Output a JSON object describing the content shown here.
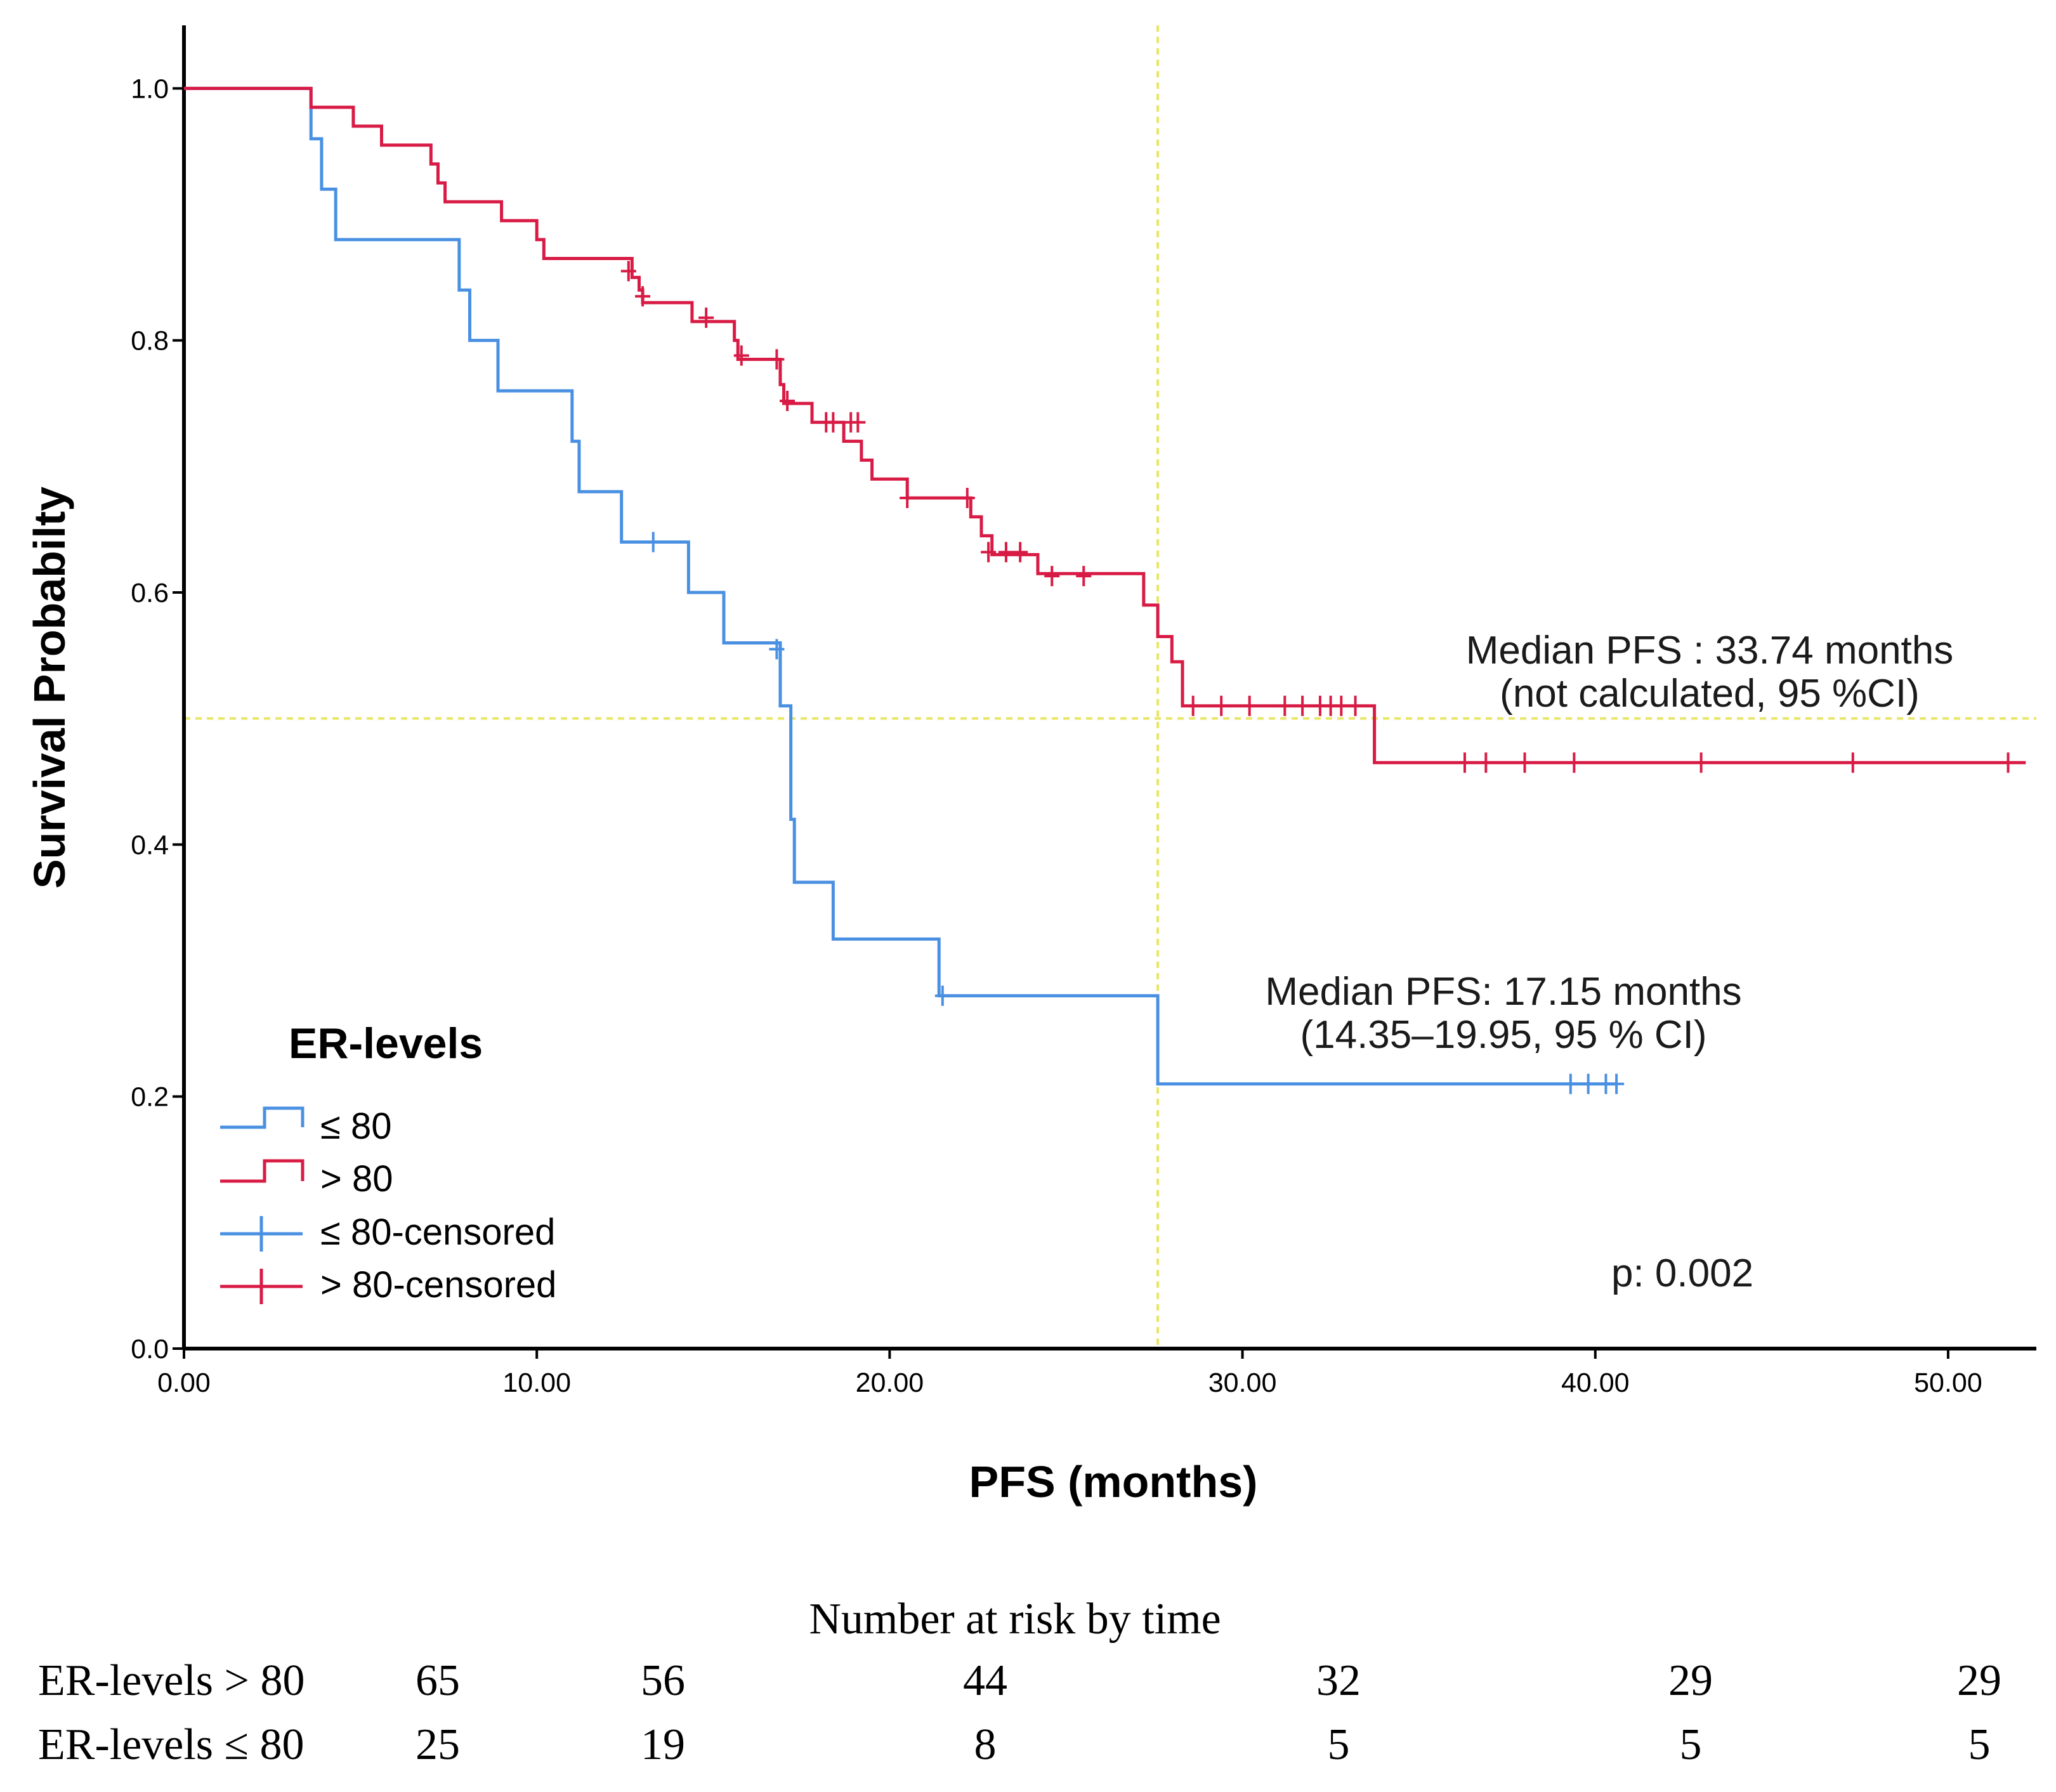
{
  "chart_data": {
    "type": "line",
    "subtype": "kaplan-meier",
    "title": "",
    "xlabel": "PFS (months)",
    "ylabel": "Survival Probabilty",
    "xlim": [
      0,
      52.5
    ],
    "ylim": [
      0,
      1.05
    ],
    "x_ticks": [
      0,
      10,
      20,
      30,
      40,
      50
    ],
    "x_tick_labels": [
      "0.00",
      "10.00",
      "20.00",
      "30.00",
      "40.00",
      "50.00"
    ],
    "y_ticks": [
      0,
      0.2,
      0.4,
      0.6,
      0.8,
      1.0
    ],
    "y_tick_labels": [
      "0.0",
      "0.2",
      "0.4",
      "0.6",
      "0.8",
      "1.0"
    ],
    "legend": {
      "title": "ER-levels",
      "position": "bottom-left",
      "entries": [
        "≤ 80",
        "> 80",
        "≤ 80-censored",
        "> 80-censored"
      ]
    },
    "series": [
      {
        "name": "≤ 80",
        "color": "#4a90e2",
        "steps": [
          [
            0,
            1.0
          ],
          [
            3.6,
            0.96
          ],
          [
            3.9,
            0.92
          ],
          [
            4.3,
            0.88
          ],
          [
            7.8,
            0.84
          ],
          [
            8.1,
            0.8
          ],
          [
            8.9,
            0.76
          ],
          [
            11.0,
            0.72
          ],
          [
            11.2,
            0.68
          ],
          [
            12.4,
            0.64
          ],
          [
            14.3,
            0.6
          ],
          [
            15.3,
            0.56
          ],
          [
            16.9,
            0.51
          ],
          [
            17.2,
            0.42
          ],
          [
            17.3,
            0.37
          ],
          [
            18.4,
            0.325
          ],
          [
            21.4,
            0.28
          ],
          [
            27.6,
            0.21
          ]
        ],
        "end_x": 40.6,
        "censored": [
          [
            13.3,
            0.64
          ],
          [
            16.8,
            0.555
          ],
          [
            21.5,
            0.28
          ],
          [
            39.3,
            0.21
          ],
          [
            39.8,
            0.21
          ],
          [
            40.3,
            0.21
          ],
          [
            40.6,
            0.21
          ]
        ]
      },
      {
        "name": "> 80",
        "color": "#d81b45",
        "steps": [
          [
            0,
            1.0
          ],
          [
            3.6,
            0.985
          ],
          [
            4.8,
            0.97
          ],
          [
            5.6,
            0.955
          ],
          [
            7.0,
            0.94
          ],
          [
            7.2,
            0.925
          ],
          [
            7.4,
            0.91
          ],
          [
            9.0,
            0.895
          ],
          [
            10.0,
            0.88
          ],
          [
            10.2,
            0.865
          ],
          [
            12.7,
            0.85
          ],
          [
            12.9,
            0.84
          ],
          [
            13.0,
            0.83
          ],
          [
            14.4,
            0.815
          ],
          [
            15.6,
            0.8
          ],
          [
            15.7,
            0.785
          ],
          [
            16.9,
            0.765
          ],
          [
            17.0,
            0.75
          ],
          [
            17.8,
            0.735
          ],
          [
            18.7,
            0.72
          ],
          [
            19.2,
            0.705
          ],
          [
            19.5,
            0.69
          ],
          [
            20.5,
            0.675
          ],
          [
            22.3,
            0.66
          ],
          [
            22.6,
            0.645
          ],
          [
            22.9,
            0.63
          ],
          [
            24.2,
            0.615
          ],
          [
            27.2,
            0.59
          ],
          [
            27.6,
            0.565
          ],
          [
            28.0,
            0.545
          ],
          [
            28.3,
            0.51
          ],
          [
            33.74,
            0.465
          ]
        ],
        "end_x": 52.2,
        "censored": [
          [
            12.6,
            0.855
          ],
          [
            13.0,
            0.835
          ],
          [
            14.8,
            0.818
          ],
          [
            15.8,
            0.788
          ],
          [
            16.8,
            0.785
          ],
          [
            17.1,
            0.752
          ],
          [
            18.2,
            0.735
          ],
          [
            18.4,
            0.735
          ],
          [
            18.9,
            0.735
          ],
          [
            19.1,
            0.735
          ],
          [
            20.5,
            0.675
          ],
          [
            22.2,
            0.675
          ],
          [
            22.8,
            0.632
          ],
          [
            23.3,
            0.632
          ],
          [
            23.7,
            0.632
          ],
          [
            24.6,
            0.613
          ],
          [
            25.5,
            0.613
          ],
          [
            28.6,
            0.51
          ],
          [
            29.4,
            0.51
          ],
          [
            30.2,
            0.51
          ],
          [
            31.2,
            0.51
          ],
          [
            31.7,
            0.51
          ],
          [
            32.2,
            0.51
          ],
          [
            32.5,
            0.51
          ],
          [
            32.8,
            0.51
          ],
          [
            33.2,
            0.51
          ],
          [
            36.3,
            0.465
          ],
          [
            36.9,
            0.465
          ],
          [
            38.0,
            0.465
          ],
          [
            39.4,
            0.465
          ],
          [
            43.0,
            0.465
          ],
          [
            47.3,
            0.465
          ],
          [
            51.7,
            0.465
          ]
        ]
      }
    ],
    "reference_lines": {
      "horizontal_y": 0.5,
      "vertical_x": 27.6,
      "color": "#e6e667"
    },
    "annotations": [
      {
        "id": "median-high",
        "lines": [
          "Median PFS : 33.74 months",
          "(not calculated, 95 %CI)"
        ]
      },
      {
        "id": "median-low",
        "lines": [
          "Median PFS: 17.15 months",
          "(14.35–19.95, 95 % CI)"
        ]
      }
    ],
    "p_value_text": "p: 0.002"
  },
  "risk_table": {
    "title": "Number at risk by time",
    "rows": [
      {
        "label": "ER-levels > 80",
        "values": [
          "65",
          "56",
          "44",
          "32",
          "29",
          "29"
        ]
      },
      {
        "label": "ER-levels ≤ 80",
        "values": [
          "25",
          "19",
          "8",
          "5",
          "5",
          "5"
        ]
      }
    ]
  }
}
